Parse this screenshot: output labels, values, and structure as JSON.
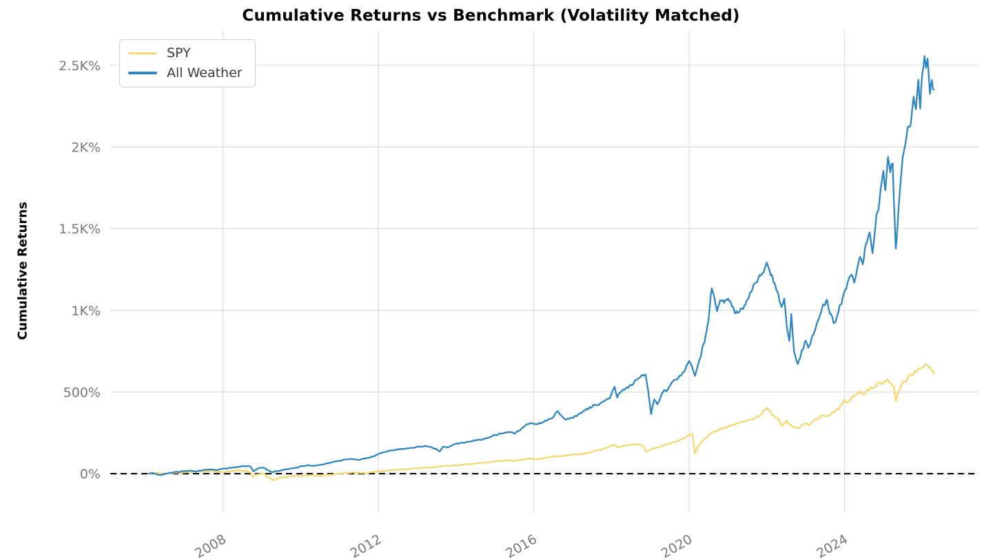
{
  "chart_data": {
    "type": "line",
    "title": "Cumulative Returns vs Benchmark (Volatility Matched)",
    "xlabel": "",
    "ylabel": "Cumulative Returns",
    "x_unit": "year",
    "xlim": [
      2005.1,
      2027.45
    ],
    "ylim": [
      -240,
      2710
    ],
    "x_ticks": [
      2008,
      2012,
      2016,
      2020,
      2024
    ],
    "x_tick_labels": [
      "2008",
      "2012",
      "2016",
      "2020",
      "2024"
    ],
    "y_ticks": [
      0,
      500,
      1000,
      1500,
      2000,
      2500
    ],
    "y_tick_labels": [
      "0%",
      "500%",
      "1K%",
      "1.5K%",
      "2K%",
      "2.5K%"
    ],
    "grid": true,
    "grid_color": "#dcdcdc",
    "tick_label_color": "#777777",
    "zero_line": {
      "value": 0,
      "style": "dashed",
      "color": "#000000"
    },
    "legend_position": "upper-left",
    "series": [
      {
        "name": "SPY",
        "color": "#F7D76E",
        "points": [
          [
            2006.1,
            0
          ],
          [
            2006.3,
            3
          ],
          [
            2006.5,
            -3
          ],
          [
            2006.7,
            4
          ],
          [
            2006.9,
            7
          ],
          [
            2007.1,
            10
          ],
          [
            2007.3,
            13
          ],
          [
            2007.5,
            15
          ],
          [
            2007.7,
            18
          ],
          [
            2007.9,
            11
          ],
          [
            2008.0,
            8
          ],
          [
            2008.2,
            14
          ],
          [
            2008.35,
            20
          ],
          [
            2008.5,
            17
          ],
          [
            2008.65,
            14
          ],
          [
            2008.72,
            5
          ],
          [
            2008.78,
            -21
          ],
          [
            2008.85,
            -8
          ],
          [
            2008.95,
            -2
          ],
          [
            2009.05,
            0
          ],
          [
            2009.15,
            -18
          ],
          [
            2009.25,
            -34
          ],
          [
            2009.3,
            -38
          ],
          [
            2009.45,
            -26
          ],
          [
            2009.6,
            -21
          ],
          [
            2009.8,
            -16
          ],
          [
            2010.0,
            -13
          ],
          [
            2010.3,
            -8
          ],
          [
            2010.5,
            -12
          ],
          [
            2010.75,
            -6
          ],
          [
            2011.0,
            0
          ],
          [
            2011.2,
            5
          ],
          [
            2011.4,
            8
          ],
          [
            2011.6,
            2
          ],
          [
            2011.8,
            7
          ],
          [
            2012.0,
            13
          ],
          [
            2012.3,
            20
          ],
          [
            2012.5,
            25
          ],
          [
            2012.75,
            29
          ],
          [
            2013.0,
            33
          ],
          [
            2013.3,
            38
          ],
          [
            2013.6,
            45
          ],
          [
            2013.8,
            47
          ],
          [
            2014.0,
            50
          ],
          [
            2014.3,
            58
          ],
          [
            2014.7,
            67
          ],
          [
            2015.0,
            75
          ],
          [
            2015.3,
            82
          ],
          [
            2015.5,
            78
          ],
          [
            2015.7,
            87
          ],
          [
            2015.9,
            93
          ],
          [
            2016.1,
            88
          ],
          [
            2016.3,
            96
          ],
          [
            2016.5,
            103
          ],
          [
            2016.8,
            110
          ],
          [
            2017.0,
            117
          ],
          [
            2017.3,
            122
          ],
          [
            2017.6,
            140
          ],
          [
            2017.9,
            160
          ],
          [
            2018.05,
            177
          ],
          [
            2018.15,
            162
          ],
          [
            2018.3,
            170
          ],
          [
            2018.5,
            176
          ],
          [
            2018.7,
            180
          ],
          [
            2018.82,
            172
          ],
          [
            2018.9,
            130
          ],
          [
            2019.0,
            148
          ],
          [
            2019.15,
            158
          ],
          [
            2019.3,
            170
          ],
          [
            2019.5,
            185
          ],
          [
            2019.7,
            200
          ],
          [
            2019.85,
            215
          ],
          [
            2020.0,
            236
          ],
          [
            2020.08,
            245
          ],
          [
            2020.15,
            122
          ],
          [
            2020.25,
            175
          ],
          [
            2020.4,
            215
          ],
          [
            2020.55,
            245
          ],
          [
            2020.7,
            262
          ],
          [
            2020.85,
            275
          ],
          [
            2021.0,
            288
          ],
          [
            2021.15,
            300
          ],
          [
            2021.3,
            312
          ],
          [
            2021.5,
            325
          ],
          [
            2021.7,
            338
          ],
          [
            2021.85,
            360
          ],
          [
            2022.0,
            404
          ],
          [
            2022.1,
            378
          ],
          [
            2022.2,
            352
          ],
          [
            2022.3,
            330
          ],
          [
            2022.4,
            290
          ],
          [
            2022.5,
            324
          ],
          [
            2022.6,
            298
          ],
          [
            2022.7,
            286
          ],
          [
            2022.8,
            278
          ],
          [
            2022.9,
            300
          ],
          [
            2023.0,
            312
          ],
          [
            2023.1,
            296
          ],
          [
            2023.2,
            322
          ],
          [
            2023.35,
            345
          ],
          [
            2023.45,
            362
          ],
          [
            2023.55,
            350
          ],
          [
            2023.7,
            376
          ],
          [
            2023.85,
            400
          ],
          [
            2024.0,
            450
          ],
          [
            2024.1,
            438
          ],
          [
            2024.2,
            468
          ],
          [
            2024.3,
            484
          ],
          [
            2024.4,
            500
          ],
          [
            2024.5,
            490
          ],
          [
            2024.6,
            512
          ],
          [
            2024.7,
            525
          ],
          [
            2024.8,
            540
          ],
          [
            2024.9,
            552
          ],
          [
            2025.0,
            560
          ],
          [
            2025.1,
            572
          ],
          [
            2025.2,
            551
          ],
          [
            2025.27,
            534
          ],
          [
            2025.32,
            446
          ],
          [
            2025.42,
            520
          ],
          [
            2025.5,
            556
          ],
          [
            2025.6,
            580
          ],
          [
            2025.7,
            600
          ],
          [
            2025.8,
            619
          ],
          [
            2025.9,
            640
          ],
          [
            2026.0,
            657
          ],
          [
            2026.08,
            673
          ],
          [
            2026.15,
            660
          ],
          [
            2026.2,
            648
          ],
          [
            2026.3,
            610
          ]
        ]
      },
      {
        "name": "All Weather",
        "color": "#2E86C1",
        "points": [
          [
            2006.1,
            0
          ],
          [
            2006.2,
            4
          ],
          [
            2006.3,
            -5
          ],
          [
            2006.4,
            -10
          ],
          [
            2006.5,
            -2
          ],
          [
            2006.65,
            6
          ],
          [
            2006.8,
            10
          ],
          [
            2007.0,
            15
          ],
          [
            2007.15,
            18
          ],
          [
            2007.3,
            14
          ],
          [
            2007.5,
            22
          ],
          [
            2007.7,
            26
          ],
          [
            2007.85,
            23
          ],
          [
            2008.0,
            29
          ],
          [
            2008.2,
            36
          ],
          [
            2008.4,
            42
          ],
          [
            2008.55,
            46
          ],
          [
            2008.65,
            48
          ],
          [
            2008.72,
            40
          ],
          [
            2008.78,
            15
          ],
          [
            2008.85,
            25
          ],
          [
            2008.95,
            35
          ],
          [
            2009.05,
            38
          ],
          [
            2009.15,
            22
          ],
          [
            2009.25,
            8
          ],
          [
            2009.35,
            15
          ],
          [
            2009.5,
            20
          ],
          [
            2009.7,
            28
          ],
          [
            2009.9,
            38
          ],
          [
            2010.0,
            46
          ],
          [
            2010.2,
            52
          ],
          [
            2010.35,
            47
          ],
          [
            2010.5,
            55
          ],
          [
            2010.7,
            64
          ],
          [
            2010.9,
            74
          ],
          [
            2011.1,
            83
          ],
          [
            2011.3,
            90
          ],
          [
            2011.5,
            85
          ],
          [
            2011.7,
            95
          ],
          [
            2011.9,
            108
          ],
          [
            2012.0,
            122
          ],
          [
            2012.2,
            135
          ],
          [
            2012.4,
            146
          ],
          [
            2012.6,
            152
          ],
          [
            2012.8,
            157
          ],
          [
            2013.0,
            162
          ],
          [
            2013.2,
            168
          ],
          [
            2013.35,
            161
          ],
          [
            2013.5,
            152
          ],
          [
            2013.58,
            136
          ],
          [
            2013.68,
            170
          ],
          [
            2013.78,
            158
          ],
          [
            2013.9,
            172
          ],
          [
            2014.0,
            185
          ],
          [
            2014.2,
            192
          ],
          [
            2014.4,
            198
          ],
          [
            2014.6,
            206
          ],
          [
            2014.8,
            216
          ],
          [
            2015.0,
            236
          ],
          [
            2015.2,
            248
          ],
          [
            2015.35,
            255
          ],
          [
            2015.5,
            247
          ],
          [
            2015.7,
            280
          ],
          [
            2015.85,
            305
          ],
          [
            2015.95,
            315
          ],
          [
            2016.05,
            302
          ],
          [
            2016.2,
            310
          ],
          [
            2016.35,
            325
          ],
          [
            2016.5,
            350
          ],
          [
            2016.62,
            383
          ],
          [
            2016.72,
            350
          ],
          [
            2016.82,
            330
          ],
          [
            2016.95,
            338
          ],
          [
            2017.1,
            355
          ],
          [
            2017.3,
            385
          ],
          [
            2017.5,
            408
          ],
          [
            2017.7,
            430
          ],
          [
            2017.9,
            458
          ],
          [
            2018.0,
            480
          ],
          [
            2018.08,
            535
          ],
          [
            2018.15,
            470
          ],
          [
            2018.25,
            500
          ],
          [
            2018.4,
            525
          ],
          [
            2018.55,
            555
          ],
          [
            2018.7,
            585
          ],
          [
            2018.8,
            605
          ],
          [
            2018.88,
            614
          ],
          [
            2018.95,
            500
          ],
          [
            2019.02,
            370
          ],
          [
            2019.1,
            460
          ],
          [
            2019.18,
            425
          ],
          [
            2019.3,
            490
          ],
          [
            2019.45,
            520
          ],
          [
            2019.6,
            565
          ],
          [
            2019.75,
            590
          ],
          [
            2019.9,
            635
          ],
          [
            2020.0,
            682
          ],
          [
            2020.08,
            655
          ],
          [
            2020.15,
            600
          ],
          [
            2020.22,
            650
          ],
          [
            2020.3,
            720
          ],
          [
            2020.4,
            820
          ],
          [
            2020.5,
            950
          ],
          [
            2020.58,
            1124
          ],
          [
            2020.65,
            1065
          ],
          [
            2020.72,
            1006
          ],
          [
            2020.8,
            1060
          ],
          [
            2020.9,
            1048
          ],
          [
            2021.0,
            1069
          ],
          [
            2021.1,
            1035
          ],
          [
            2021.2,
            972
          ],
          [
            2021.3,
            998
          ],
          [
            2021.45,
            1035
          ],
          [
            2021.6,
            1120
          ],
          [
            2021.75,
            1180
          ],
          [
            2021.9,
            1240
          ],
          [
            2022.0,
            1279
          ],
          [
            2022.1,
            1230
          ],
          [
            2022.2,
            1160
          ],
          [
            2022.3,
            1080
          ],
          [
            2022.38,
            1018
          ],
          [
            2022.45,
            1060
          ],
          [
            2022.52,
            900
          ],
          [
            2022.58,
            825
          ],
          [
            2022.63,
            976
          ],
          [
            2022.7,
            753
          ],
          [
            2022.8,
            669
          ],
          [
            2022.9,
            745
          ],
          [
            2023.0,
            805
          ],
          [
            2023.07,
            758
          ],
          [
            2023.15,
            825
          ],
          [
            2023.25,
            880
          ],
          [
            2023.35,
            960
          ],
          [
            2023.45,
            1030
          ],
          [
            2023.55,
            1061
          ],
          [
            2023.65,
            975
          ],
          [
            2023.72,
            913
          ],
          [
            2023.8,
            955
          ],
          [
            2023.9,
            1040
          ],
          [
            2024.0,
            1103
          ],
          [
            2024.1,
            1180
          ],
          [
            2024.18,
            1229
          ],
          [
            2024.25,
            1185
          ],
          [
            2024.32,
            1258
          ],
          [
            2024.4,
            1313
          ],
          [
            2024.47,
            1276
          ],
          [
            2024.55,
            1390
          ],
          [
            2024.65,
            1482
          ],
          [
            2024.72,
            1376
          ],
          [
            2024.82,
            1560
          ],
          [
            2024.9,
            1679
          ],
          [
            2025.0,
            1860
          ],
          [
            2025.05,
            1751
          ],
          [
            2025.12,
            1932
          ],
          [
            2025.18,
            1830
          ],
          [
            2025.24,
            1890
          ],
          [
            2025.32,
            1372
          ],
          [
            2025.42,
            1700
          ],
          [
            2025.5,
            1961
          ],
          [
            2025.6,
            2080
          ],
          [
            2025.7,
            2155
          ],
          [
            2025.78,
            2323
          ],
          [
            2025.84,
            2256
          ],
          [
            2025.9,
            2403
          ],
          [
            2025.95,
            2250
          ],
          [
            2026.0,
            2460
          ],
          [
            2026.06,
            2576
          ],
          [
            2026.1,
            2500
          ],
          [
            2026.14,
            2555
          ],
          [
            2026.2,
            2344
          ],
          [
            2026.25,
            2410
          ],
          [
            2026.3,
            2350
          ]
        ]
      }
    ]
  }
}
